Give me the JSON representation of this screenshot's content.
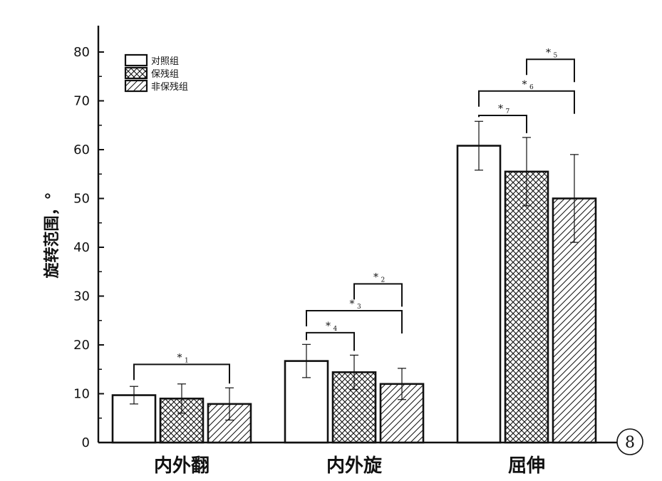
{
  "chart_data": {
    "type": "bar",
    "ylabel": "旋转范围，°",
    "ylim": [
      0,
      85
    ],
    "yticks": [
      0,
      10,
      20,
      30,
      40,
      50,
      60,
      70,
      80
    ],
    "categories": [
      "内外翻",
      "内外旋",
      "屈伸"
    ],
    "series": [
      {
        "name": "对照组",
        "pattern": "blank",
        "values": [
          9.7,
          16.7,
          60.8
        ],
        "errors": [
          1.8,
          3.4,
          5.0
        ]
      },
      {
        "name": "保残组",
        "pattern": "crosshatch",
        "values": [
          9.0,
          14.4,
          55.5
        ],
        "errors": [
          3.0,
          3.5,
          7.0
        ]
      },
      {
        "name": "非保残组",
        "pattern": "diagonal",
        "values": [
          7.9,
          12.0,
          50.0
        ],
        "errors": [
          3.3,
          3.2,
          9.0
        ]
      }
    ],
    "legend_position": "top-left",
    "significance": [
      {
        "category": 0,
        "from": 0,
        "to": 2,
        "y": 16.0,
        "label": "*",
        "sub": "1"
      },
      {
        "category": 1,
        "from": 1,
        "to": 2,
        "y": 32.5,
        "label": "*",
        "sub": "2"
      },
      {
        "category": 1,
        "from": 0,
        "to": 2,
        "y": 27.0,
        "label": "*",
        "sub": "3"
      },
      {
        "category": 1,
        "from": 0,
        "to": 1,
        "y": 22.5,
        "label": "*",
        "sub": "4"
      },
      {
        "category": 2,
        "from": 1,
        "to": 2,
        "y": 78.5,
        "label": "*",
        "sub": "5"
      },
      {
        "category": 2,
        "from": 0,
        "to": 2,
        "y": 72.0,
        "label": "*",
        "sub": "6"
      },
      {
        "category": 2,
        "from": 0,
        "to": 1,
        "y": 67.0,
        "label": "*",
        "sub": "7"
      }
    ]
  },
  "figure_number": "8",
  "colors": {
    "ink": "#111111",
    "background": "#ffffff"
  }
}
